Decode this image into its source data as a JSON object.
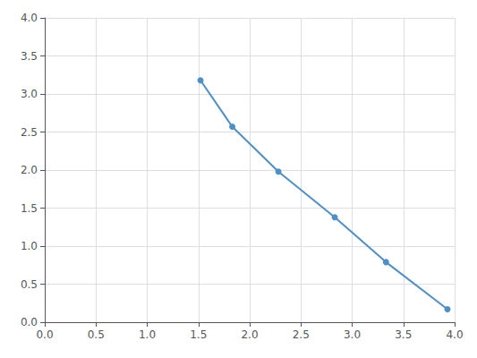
{
  "chart_data": {
    "type": "line",
    "x": [
      1.52,
      1.83,
      2.28,
      2.83,
      3.33,
      3.93
    ],
    "values": [
      3.18,
      2.57,
      1.98,
      1.38,
      0.79,
      0.17
    ],
    "color": "#4e8fc7",
    "marker": "circle",
    "xlim": [
      0,
      4
    ],
    "ylim": [
      0,
      4
    ],
    "xticks": [
      {
        "value": 0,
        "label": "0.0"
      },
      0.5,
      {
        "value": 1,
        "label": "1.0"
      },
      1.5,
      {
        "value": 2,
        "label": "2.0"
      },
      2.5,
      {
        "value": 3,
        "label": "3.0"
      },
      3.5,
      {
        "value": 4,
        "label": "4.0"
      }
    ],
    "yticks": [
      {
        "value": 0,
        "label": "0.0"
      },
      0.5,
      {
        "value": 1,
        "label": "1.0"
      },
      1.5,
      {
        "value": 2,
        "label": "2.0"
      },
      2.5,
      {
        "value": 3,
        "label": "3.0"
      },
      3.5,
      {
        "value": 4,
        "label": "4.0"
      }
    ],
    "grid": true
  }
}
